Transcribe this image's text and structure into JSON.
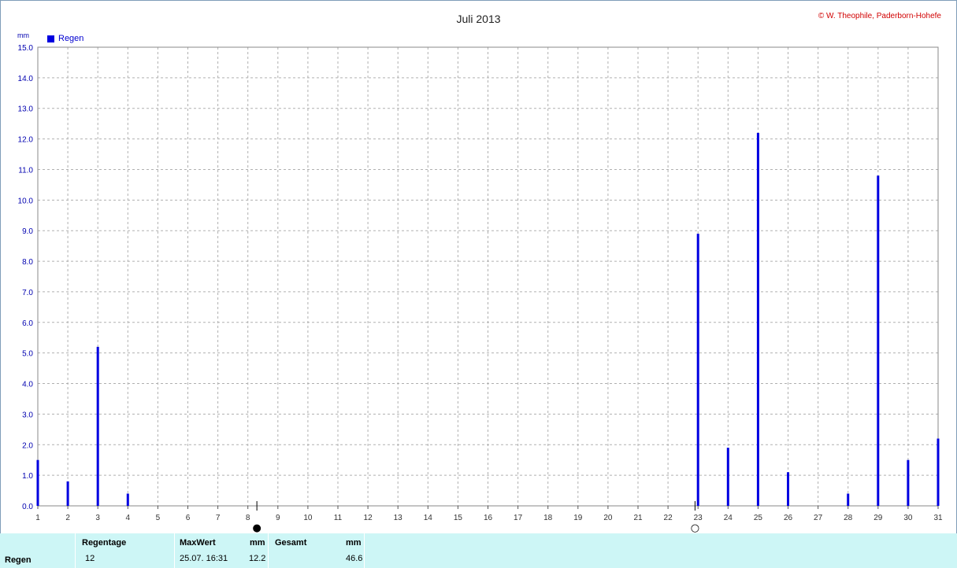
{
  "title": "Juli 2013",
  "copyright": "© W. Theophile, Paderborn-Hohefe",
  "unit": "mm",
  "legend_label": "Regen",
  "colors": {
    "series": "#0000e0",
    "axis_text": "#0000b0",
    "grid": "#b0b0b0",
    "stats_bg": "#cdf6f6"
  },
  "moon_phases": [
    {
      "day": 8.3,
      "phase": "new-moon",
      "symbol": "●"
    },
    {
      "day": 22.9,
      "phase": "full-moon",
      "symbol": "○"
    }
  ],
  "chart_data": {
    "type": "bar",
    "title": "Juli 2013",
    "ylabel": "mm",
    "ylim": [
      0,
      15
    ],
    "yticks": [
      "0.0",
      "1.0",
      "2.0",
      "3.0",
      "4.0",
      "5.0",
      "6.0",
      "7.0",
      "8.0",
      "9.0",
      "10.0",
      "11.0",
      "12.0",
      "13.0",
      "14.0",
      "15.0"
    ],
    "xlim": [
      1,
      31
    ],
    "xticks": [
      "1",
      "2",
      "3",
      "4",
      "5",
      "6",
      "7",
      "8",
      "9",
      "10",
      "11",
      "12",
      "13",
      "14",
      "15",
      "16",
      "17",
      "18",
      "19",
      "20",
      "21",
      "22",
      "23",
      "24",
      "25",
      "26",
      "27",
      "28",
      "29",
      "30",
      "31"
    ],
    "grid": true,
    "legend": "top-left",
    "series": [
      {
        "name": "Regen",
        "points": [
          {
            "x": 1,
            "y": 1.5
          },
          {
            "x": 2,
            "y": 0.8
          },
          {
            "x": 3,
            "y": 5.2
          },
          {
            "x": 4,
            "y": 0.4
          },
          {
            "x": 23,
            "y": 8.9
          },
          {
            "x": 24,
            "y": 1.9
          },
          {
            "x": 25,
            "y": 12.2
          },
          {
            "x": 26,
            "y": 1.1
          },
          {
            "x": 28,
            "y": 0.4
          },
          {
            "x": 29,
            "y": 10.8
          },
          {
            "x": 30,
            "y": 1.5
          },
          {
            "x": 31,
            "y": 2.2
          }
        ]
      }
    ]
  },
  "stats": {
    "row_label": "Regen",
    "regentage_header": "Regentage",
    "regentage_value": "12",
    "maxwert_header": "MaxWert",
    "maxwert_unit": "mm",
    "maxwert_date": "25.07.  16:31",
    "maxwert_value": "12.2",
    "gesamt_header": "Gesamt",
    "gesamt_unit": "mm",
    "gesamt_value": "46.6"
  }
}
